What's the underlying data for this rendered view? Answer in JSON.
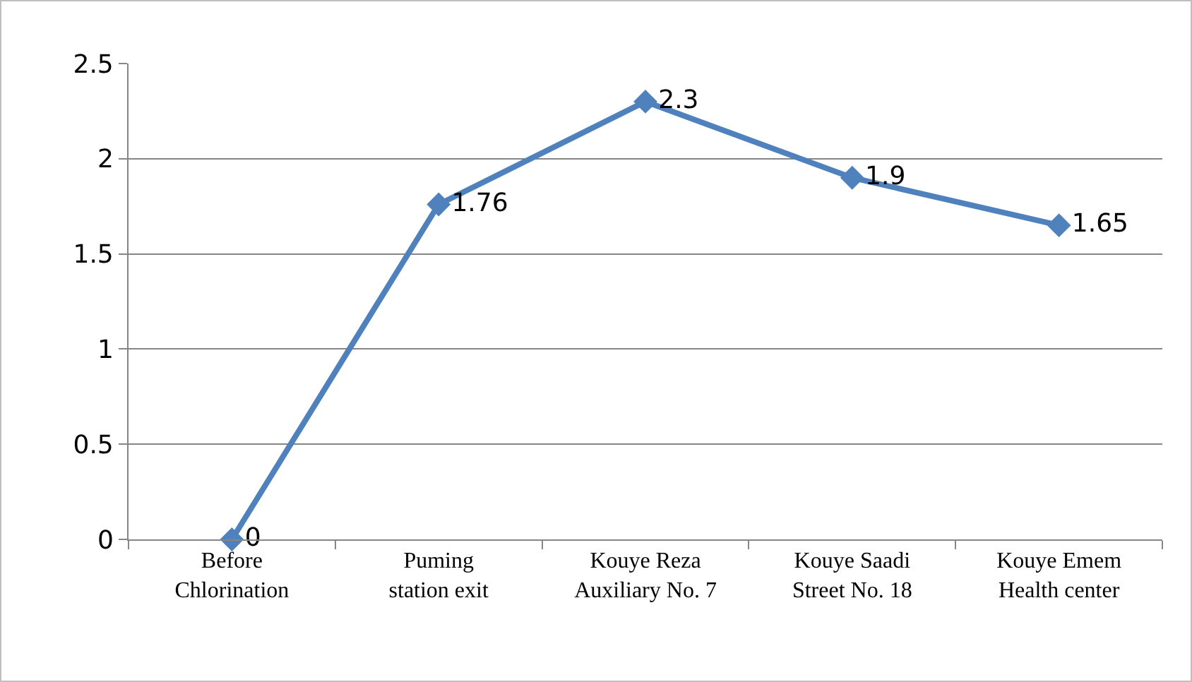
{
  "chart_data": {
    "type": "line",
    "categories": [
      "Before Chlorination",
      "Puming station exit",
      "Kouye Reza Auxiliary No. 7",
      "Kouye Saadi Street No. 18",
      "Kouye Emem Health center"
    ],
    "series": [
      {
        "color": "#4f81bd",
        "values": [
          0,
          1.76,
          2.3,
          1.9,
          1.65
        ]
      }
    ],
    "ylim": [
      0,
      2.5
    ],
    "yticks": [
      0,
      0.5,
      1,
      1.5,
      2,
      2.5
    ],
    "grid": "y",
    "data_labels": true,
    "marker": "diamond",
    "line_style": "solid"
  }
}
